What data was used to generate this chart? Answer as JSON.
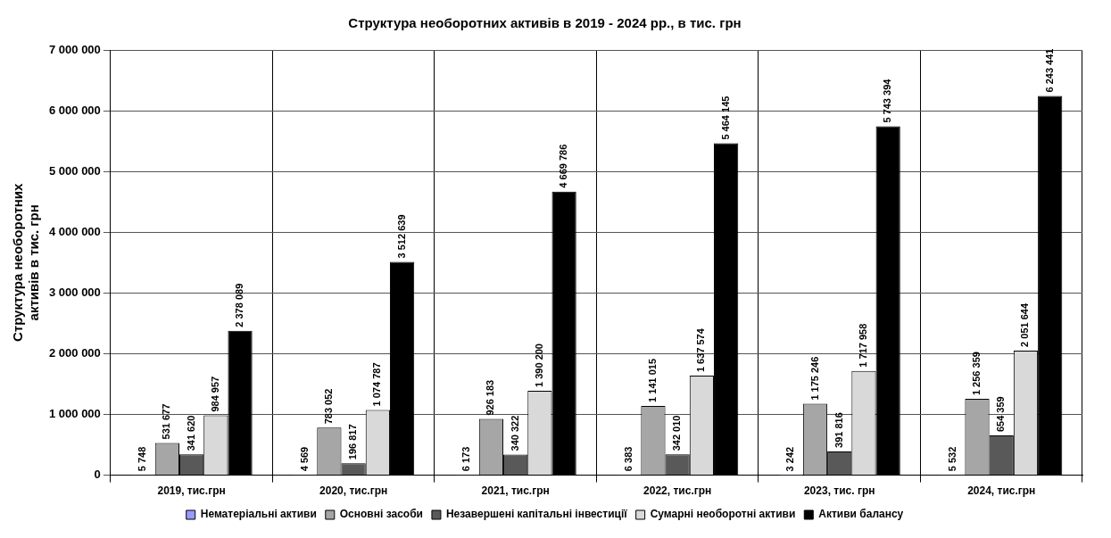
{
  "chart_data": {
    "type": "bar",
    "title": "Структура необоротних активів в 2019 - 2024 рр., в тис. грн",
    "ylabel": "Структура необоротних\nактивів в тис. грн",
    "categories": [
      "2019, тис.грн",
      "2020, тис.грн",
      "2021, тис.грн",
      "2022, тис.грн",
      "2023, тис. грн",
      "2024, тис.грн"
    ],
    "series": [
      {
        "name": "Нематеріальні активи",
        "color": "#9999ff",
        "values": [
          5748,
          4569,
          6173,
          6383,
          3242,
          5532
        ],
        "value_labels": [
          "5 748",
          "4 569",
          "6 173",
          "6 383",
          "3 242",
          "5 532"
        ]
      },
      {
        "name": "Основні засоби",
        "color": "#a6a6a6",
        "values": [
          531677,
          783052,
          926183,
          1141015,
          1175246,
          1256359
        ],
        "value_labels": [
          "531 677",
          "783 052",
          "926 183",
          "1 141 015",
          "1 175 246",
          "1 256 359"
        ]
      },
      {
        "name": "Незавершені капітальні інвестиції",
        "color": "#595959",
        "values": [
          341620,
          196817,
          340322,
          342010,
          391816,
          654359
        ],
        "value_labels": [
          "341 620",
          "196 817",
          "340 322",
          "342 010",
          "391 816",
          "654 359"
        ]
      },
      {
        "name": "Сумарні необоротні активи",
        "color": "#d9d9d9",
        "values": [
          984957,
          1074787,
          1390200,
          1637574,
          1717958,
          2051644
        ],
        "value_labels": [
          "984 957",
          "1 074 787",
          "1 390 200",
          "1 637 574",
          "1 717 958",
          "2 051 644"
        ]
      },
      {
        "name": "Активи балансу",
        "color": "#000000",
        "values": [
          2378089,
          3512639,
          4669786,
          5464145,
          5743394,
          6243441
        ],
        "value_labels": [
          "2 378 089",
          "3 512 639",
          "4 669 786",
          "5 464 145",
          "5 743 394",
          "6 243 441"
        ]
      }
    ],
    "ylim": [
      0,
      7000000
    ],
    "yticks": [
      0,
      {
        "value": 1000000,
        "label": "1 000 000"
      },
      {
        "value": 2000000,
        "label": "2 000 000"
      },
      {
        "value": 3000000,
        "label": "3 000 000"
      },
      {
        "value": 4000000,
        "label": "4 000 000"
      },
      {
        "value": 5000000,
        "label": "5 000 000"
      },
      {
        "value": 6000000,
        "label": "6 000 000"
      },
      {
        "value": 7000000,
        "label": "7 000 000"
      }
    ],
    "grid": true,
    "legend": "bottom"
  }
}
